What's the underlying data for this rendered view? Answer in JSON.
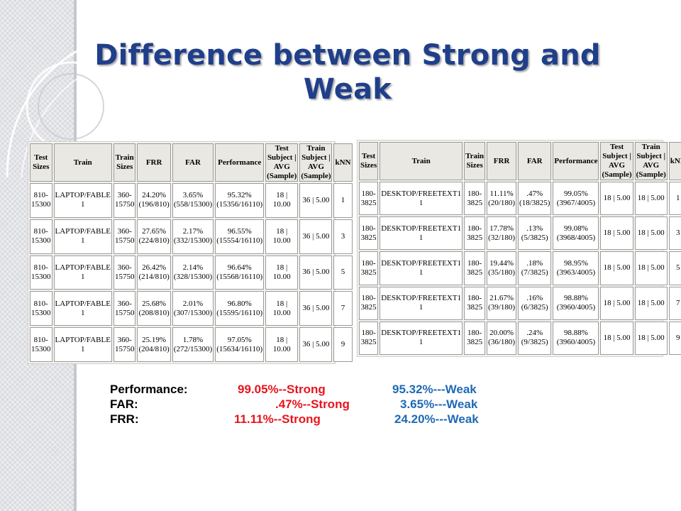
{
  "slide": {
    "title": "Difference between Strong and Weak"
  },
  "weak_table": {
    "headers": [
      "Test Sizes",
      "Train",
      "Train Sizes",
      "FRR",
      "FAR",
      "Performance",
      "Test Subject | AVG (Sample)",
      "Train Subject | AVG (Sample)",
      "kNN"
    ],
    "rows": [
      [
        "810-15300",
        "LAPTOP/FABLE 1",
        "360-15750",
        "24.20% (196/810)",
        "3.65% (558/15300)",
        "95.32% (15356/16110)",
        "18 | 10.00",
        "36 | 5.00",
        "1"
      ],
      [
        "810-15300",
        "LAPTOP/FABLE 1",
        "360-15750",
        "27.65% (224/810)",
        "2.17% (332/15300)",
        "96.55% (15554/16110)",
        "18 | 10.00",
        "36 | 5.00",
        "3"
      ],
      [
        "810-15300",
        "LAPTOP/FABLE 1",
        "360-15750",
        "26.42% (214/810)",
        "2.14% (328/15300)",
        "96.64% (15568/16110)",
        "18 | 10.00",
        "36 | 5.00",
        "5"
      ],
      [
        "810-15300",
        "LAPTOP/FABLE 1",
        "360-15750",
        "25.68% (208/810)",
        "2.01% (307/15300)",
        "96.80% (15595/16110)",
        "18 | 10.00",
        "36 | 5.00",
        "7"
      ],
      [
        "810-15300",
        "LAPTOP/FABLE 1",
        "360-15750",
        "25.19% (204/810)",
        "1.78% (272/15300)",
        "97.05% (15634/16110)",
        "18 | 10.00",
        "36 | 5.00",
        "9"
      ]
    ]
  },
  "strong_table": {
    "headers": [
      "Test Sizes",
      "Train",
      "Train Sizes",
      "FRR",
      "FAR",
      "Performance",
      "Test Subject | AVG (Sample)",
      "Train Subject | AVG (Sample)",
      "kNN"
    ],
    "rows": [
      [
        "180-3825",
        "DESKTOP/FREETEXT1 1",
        "180-3825",
        "11.11% (20/180)",
        ".47% (18/3825)",
        "99.05% (3967/4005)",
        "18 | 5.00",
        "18 | 5.00",
        "1"
      ],
      [
        "180-3825",
        "DESKTOP/FREETEXT1 1",
        "180-3825",
        "17.78% (32/180)",
        ".13% (5/3825)",
        "99.08% (3968/4005)",
        "18 | 5.00",
        "18 | 5.00",
        "3"
      ],
      [
        "180-3825",
        "DESKTOP/FREETEXT1 1",
        "180-3825",
        "19.44% (35/180)",
        ".18% (7/3825)",
        "98.95% (3963/4005)",
        "18 | 5.00",
        "18 | 5.00",
        "5"
      ],
      [
        "180-3825",
        "DESKTOP/FREETEXT1 1",
        "180-3825",
        "21.67% (39/180)",
        ".16% (6/3825)",
        "98.88% (3960/4005)",
        "18 | 5.00",
        "18 | 5.00",
        "7"
      ],
      [
        "180-3825",
        "DESKTOP/FREETEXT1 1",
        "180-3825",
        "20.00% (36/180)",
        ".24% (9/3825)",
        "98.88% (3960/4005)",
        "18 | 5.00",
        "18 | 5.00",
        "9"
      ]
    ]
  },
  "summary": [
    {
      "label": "Performance:",
      "strong": "99.05%--Strong",
      "weak": "95.32%---Weak"
    },
    {
      "label": "FAR:",
      "strong": ".47%--Strong",
      "weak": "3.65%---Weak"
    },
    {
      "label": "FRR:",
      "strong": "11.11%--Strong",
      "weak": "24.20%---Weak"
    }
  ],
  "colors": {
    "title": "#1f3f8a",
    "strong": "#e8141c",
    "weak": "#1f6ab5",
    "sidebar": "#d9dadf"
  }
}
